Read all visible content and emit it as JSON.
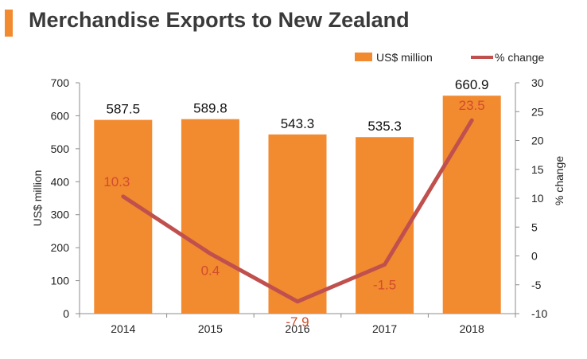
{
  "header": {
    "title": "Merchandise Exports to New Zealand"
  },
  "colors": {
    "accent": "#F28A30",
    "bar": "#F28A30",
    "line": "#C0504D",
    "line_label": "#D24C2C",
    "title": "#3a3a3a",
    "axis": "#8c8c8c"
  },
  "chart_data": {
    "type": "bar",
    "title": "Merchandise Exports to New Zealand",
    "categories": [
      "2014",
      "2015",
      "2016",
      "2017",
      "2018"
    ],
    "series": [
      {
        "name": "US$ million",
        "type": "bar",
        "axis": "left",
        "values": [
          587.5,
          589.8,
          543.3,
          535.3,
          660.9
        ],
        "labels": [
          "587.5",
          "589.8",
          "543.3",
          "535.3",
          "660.9"
        ]
      },
      {
        "name": "% change",
        "type": "line",
        "axis": "right",
        "values": [
          10.3,
          0.4,
          -7.9,
          -1.5,
          23.5
        ],
        "labels": [
          "10.3",
          "0.4",
          "-7.9",
          "-1.5",
          "23.5"
        ]
      }
    ],
    "ylabel": "US$ million",
    "y2label": "% change",
    "ylim": [
      0,
      700
    ],
    "y2lim": [
      -10,
      30
    ],
    "yticks": [
      "0",
      "100",
      "200",
      "300",
      "400",
      "500",
      "600",
      "700"
    ],
    "y2ticks": [
      "-10",
      "-5",
      "0",
      "5",
      "10",
      "15",
      "20",
      "25",
      "30"
    ],
    "legend_position": "top-right",
    "grid": false
  }
}
